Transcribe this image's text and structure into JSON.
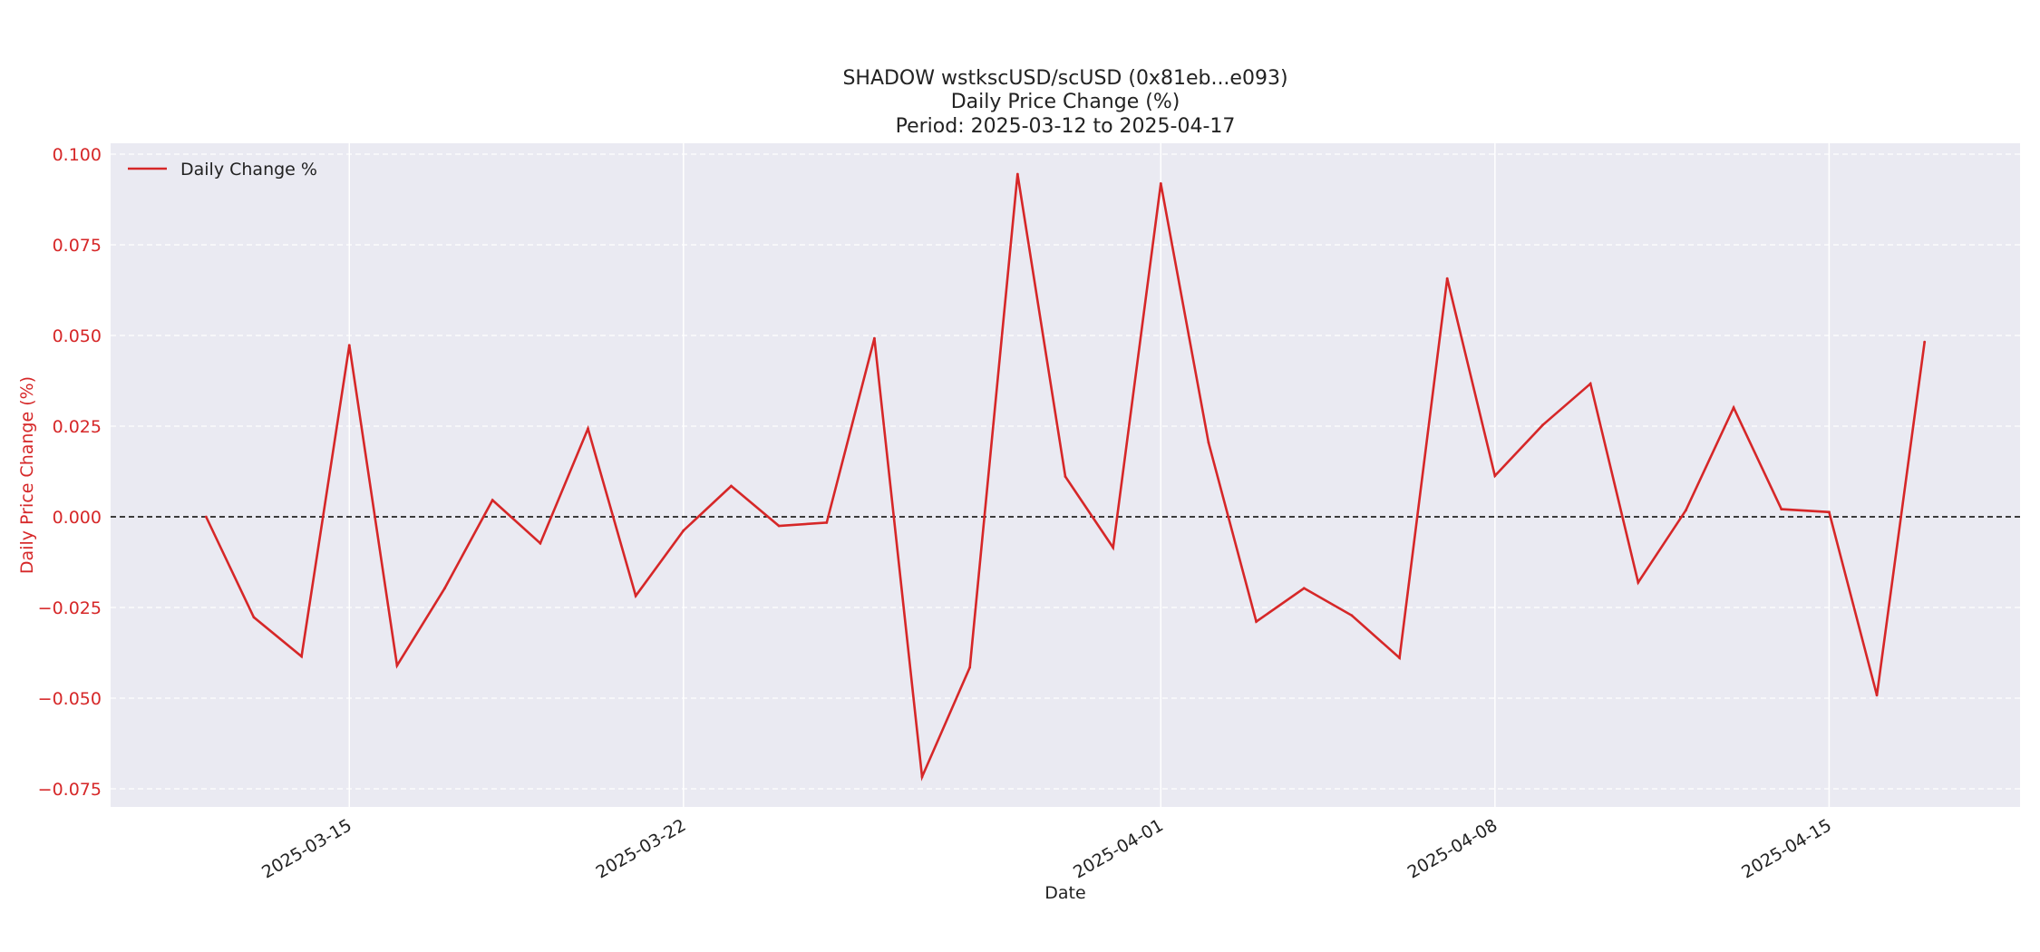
{
  "chart_data": {
    "type": "line",
    "title_lines": [
      "SHADOW wstkscUSD/scUSD (0x81eb...e093)",
      "Daily Price Change (%)",
      "Period: 2025-03-12 to 2025-04-17"
    ],
    "xlabel": "Date",
    "ylabel": "Daily Price Change (%)",
    "x_ticks": [
      "2025-03-15",
      "2025-03-22",
      "2025-04-01",
      "2025-04-08",
      "2025-04-15"
    ],
    "y_ticks": [
      "0.100",
      "0.075",
      "0.050",
      "0.025",
      "0.000",
      "−0.025",
      "−0.050",
      "−0.075"
    ],
    "y_tick_values": [
      0.1,
      0.075,
      0.05,
      0.025,
      0.0,
      -0.025,
      -0.05,
      -0.075
    ],
    "xlim": [
      "2025-03-10",
      "2025-04-19"
    ],
    "ylim": [
      -0.08,
      0.103
    ],
    "grid": true,
    "legend_position": "top-left",
    "reference_line": {
      "y": 0.0,
      "style": "dashed",
      "color": "#000000"
    },
    "colors": {
      "series": "#d62728",
      "ylabel": "#d62728",
      "plot_background": "#eaeaf2",
      "grid": "#ffffff"
    },
    "series": [
      {
        "name": "Daily Change %",
        "x": [
          "2025-03-12",
          "2025-03-13",
          "2025-03-14",
          "2025-03-15",
          "2025-03-16",
          "2025-03-17",
          "2025-03-18",
          "2025-03-19",
          "2025-03-20",
          "2025-03-21",
          "2025-03-22",
          "2025-03-23",
          "2025-03-24",
          "2025-03-25",
          "2025-03-26",
          "2025-03-27",
          "2025-03-28",
          "2025-03-29",
          "2025-03-30",
          "2025-03-31",
          "2025-04-01",
          "2025-04-02",
          "2025-04-03",
          "2025-04-04",
          "2025-04-05",
          "2025-04-06",
          "2025-04-07",
          "2025-04-08",
          "2025-04-09",
          "2025-04-10",
          "2025-04-11",
          "2025-04-12",
          "2025-04-13",
          "2025-04-14",
          "2025-04-15",
          "2025-04-16",
          "2025-04-17"
        ],
        "values": [
          0.0,
          -0.0277,
          -0.0385,
          0.0473,
          -0.041,
          -0.0197,
          0.0046,
          -0.0073,
          0.0243,
          -0.0218,
          -0.0038,
          0.0085,
          -0.0025,
          -0.0016,
          0.0492,
          -0.0717,
          -0.0415,
          0.0945,
          0.0111,
          -0.0085,
          0.0919,
          0.0205,
          -0.0289,
          -0.0197,
          -0.0272,
          -0.0389,
          0.0657,
          0.0113,
          0.0253,
          0.0367,
          -0.0181,
          0.0018,
          0.0301,
          0.0021,
          0.0013,
          -0.0492,
          0.0482
        ]
      }
    ]
  }
}
